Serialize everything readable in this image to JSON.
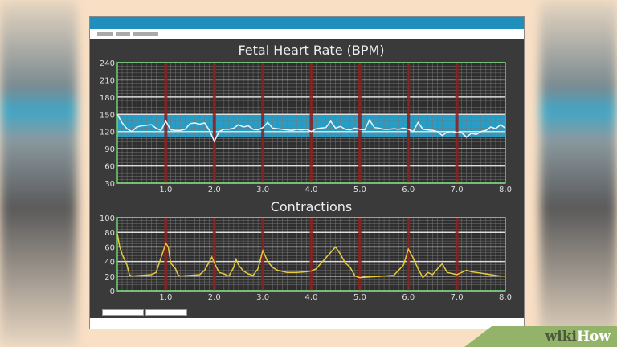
{
  "watermark": {
    "part1": "wiki",
    "part2": "How"
  },
  "colors": {
    "fhr_line": "#e8f6ff",
    "normal_band": "#1fb4e8",
    "contraction_line": "#e8c93a",
    "marker": "#8b1e1e",
    "frame": "#6fcf6f",
    "titlebar": "#1f8fbd"
  },
  "chart_data": [
    {
      "type": "line",
      "title": "Fetal Heart Rate (BPM)",
      "xlim": [
        0,
        8
      ],
      "ylim": [
        30,
        240
      ],
      "xticks": [
        "1.0",
        "2.0",
        "3.0",
        "4.0",
        "5.0",
        "6.0",
        "7.0",
        "8.0"
      ],
      "yticks": [
        "30",
        "60",
        "90",
        "120",
        "150",
        "180",
        "210",
        "240"
      ],
      "grid": true,
      "normal_range": [
        110,
        150
      ],
      "markers_x": [
        1,
        2,
        3,
        4,
        5,
        6,
        7
      ],
      "x": [
        0,
        0.1,
        0.2,
        0.3,
        0.4,
        0.5,
        0.6,
        0.7,
        0.8,
        0.9,
        1.0,
        1.1,
        1.2,
        1.3,
        1.4,
        1.5,
        1.6,
        1.7,
        1.8,
        1.9,
        2.0,
        2.1,
        2.2,
        2.3,
        2.4,
        2.5,
        2.6,
        2.7,
        2.8,
        2.9,
        3.0,
        3.1,
        3.2,
        3.3,
        3.4,
        3.5,
        3.6,
        3.7,
        3.8,
        3.9,
        4.0,
        4.1,
        4.2,
        4.3,
        4.4,
        4.5,
        4.6,
        4.7,
        4.8,
        4.9,
        5.0,
        5.1,
        5.2,
        5.3,
        5.4,
        5.5,
        5.6,
        5.7,
        5.8,
        5.9,
        6.0,
        6.1,
        6.2,
        6.3,
        6.4,
        6.5,
        6.6,
        6.7,
        6.8,
        6.9,
        7.0,
        7.1,
        7.2,
        7.3,
        7.4,
        7.5,
        7.6,
        7.7,
        7.8,
        7.9,
        8.0
      ],
      "y": [
        150,
        135,
        125,
        120,
        128,
        130,
        131,
        132,
        126,
        122,
        138,
        123,
        122,
        122,
        124,
        134,
        135,
        133,
        135,
        122,
        103,
        120,
        124,
        124,
        126,
        132,
        128,
        130,
        124,
        123,
        127,
        136,
        126,
        125,
        124,
        123,
        122,
        124,
        123,
        124,
        120,
        125,
        126,
        127,
        138,
        126,
        129,
        124,
        123,
        126,
        124,
        123,
        140,
        127,
        126,
        124,
        124,
        125,
        124,
        126,
        124,
        120,
        136,
        124,
        123,
        122,
        120,
        113,
        119,
        120,
        118,
        118,
        110,
        117,
        115,
        120,
        122,
        128,
        125,
        132,
        126
      ]
    },
    {
      "type": "line",
      "title": "Contractions",
      "xlim": [
        0,
        8
      ],
      "ylim": [
        0,
        100
      ],
      "xticks": [
        "1.0",
        "2.0",
        "3.0",
        "4.0",
        "5.0",
        "6.0",
        "7.0",
        "8.0"
      ],
      "yticks": [
        "0",
        "20",
        "40",
        "60",
        "80",
        "100"
      ],
      "grid": true,
      "markers_x": [
        1,
        2,
        3,
        4,
        5,
        6,
        7
      ],
      "x": [
        0,
        0.05,
        0.1,
        0.2,
        0.25,
        0.3,
        0.5,
        0.7,
        0.8,
        0.9,
        1.0,
        1.05,
        1.1,
        1.2,
        1.25,
        1.3,
        1.5,
        1.7,
        1.8,
        1.9,
        1.95,
        2.0,
        2.1,
        2.2,
        2.3,
        2.4,
        2.45,
        2.5,
        2.6,
        2.7,
        2.8,
        2.9,
        3.0,
        3.1,
        3.2,
        3.3,
        3.5,
        3.7,
        3.9,
        4.0,
        4.1,
        4.3,
        4.5,
        4.6,
        4.7,
        4.8,
        4.9,
        5.0,
        5.2,
        5.5,
        5.7,
        5.9,
        6.0,
        6.1,
        6.2,
        6.3,
        6.4,
        6.5,
        6.6,
        6.7,
        6.8,
        7.0,
        7.1,
        7.2,
        7.3,
        7.5,
        7.7,
        7.9,
        8.0
      ],
      "y": [
        78,
        60,
        50,
        35,
        22,
        20,
        21,
        22,
        25,
        45,
        65,
        60,
        38,
        30,
        22,
        20,
        21,
        22,
        28,
        40,
        46,
        38,
        25,
        23,
        20,
        32,
        43,
        35,
        27,
        23,
        21,
        30,
        55,
        40,
        32,
        28,
        25,
        25,
        26,
        27,
        30,
        45,
        60,
        50,
        38,
        32,
        20,
        18,
        19,
        20,
        21,
        35,
        57,
        45,
        30,
        18,
        25,
        22,
        30,
        37,
        25,
        22,
        25,
        28,
        26,
        24,
        22,
        20,
        20
      ]
    }
  ]
}
